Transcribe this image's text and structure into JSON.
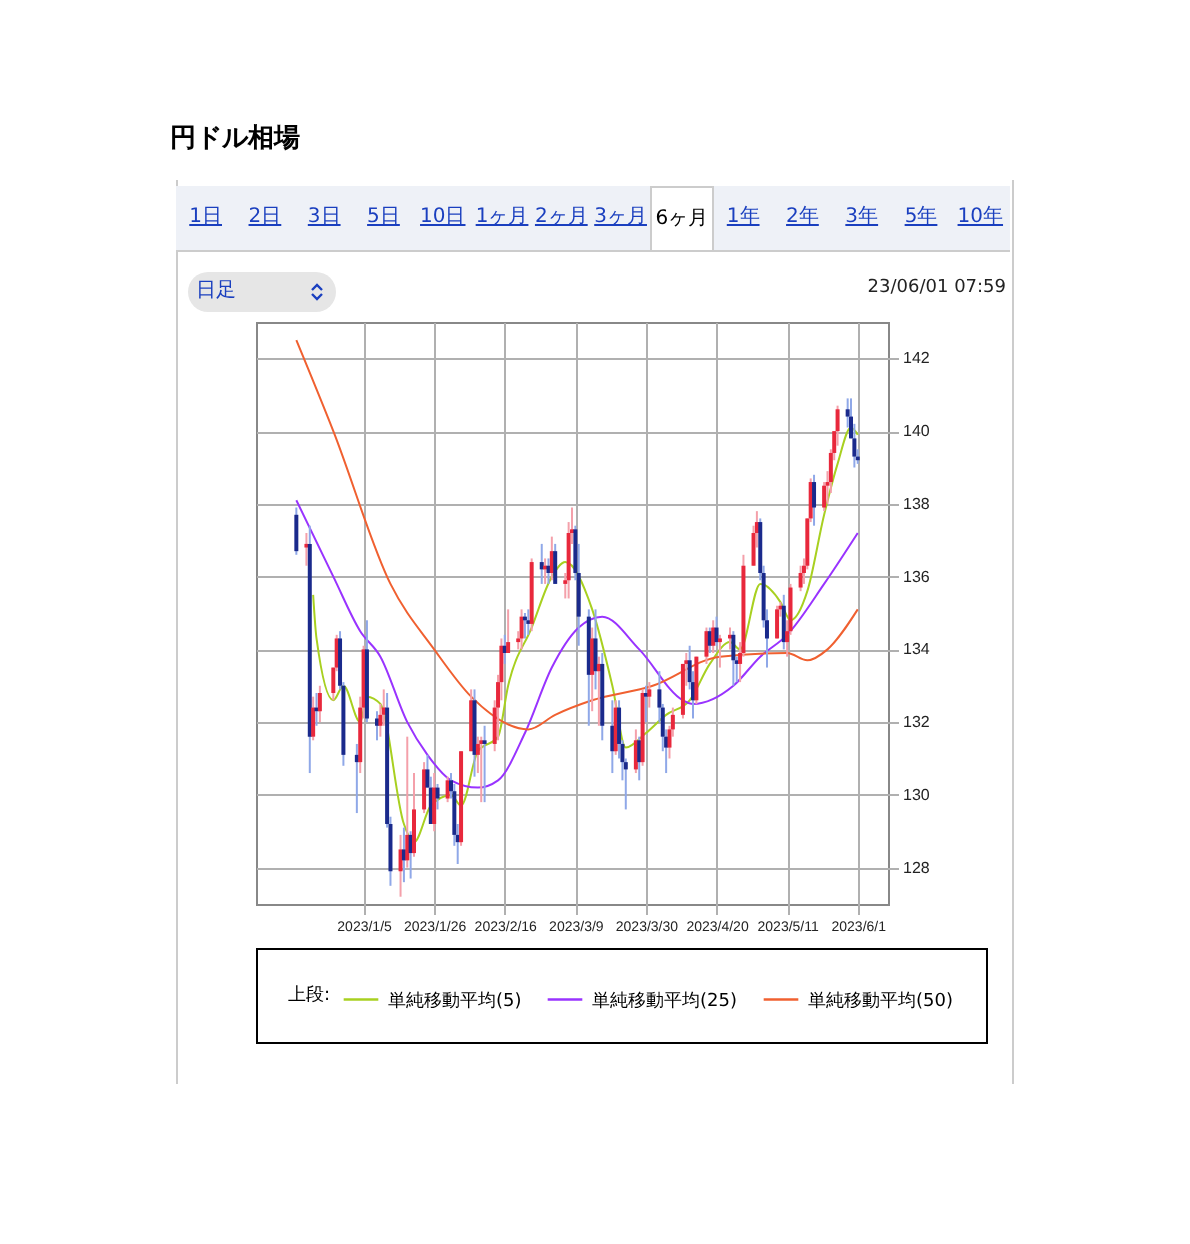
{
  "chart_data": {
    "type": "candlestick",
    "title": "円ドル相場",
    "annotations": [
      "1日",
      "2日",
      "3日",
      "5日",
      "10日",
      "1ヶ月",
      "2ヶ月",
      "3ヶ月",
      "6ヶ月",
      "1年",
      "2年",
      "3年",
      "5年",
      "10年",
      "日足",
      "23/06/01 07:59"
    ],
    "legend_title": "上段:",
    "legend": "bottom",
    "grid": true,
    "xlim": [
      "2022-12-04",
      "2023-06-10"
    ],
    "ylim": [
      127,
      143
    ],
    "xticks": [
      {
        "value": "2023-01-05",
        "label": "2023/1/5"
      },
      {
        "value": "2023-01-26",
        "label": "2023/1/26"
      },
      {
        "value": "2023-02-16",
        "label": "2023/2/16"
      },
      {
        "value": "2023-03-09",
        "label": "2023/3/9"
      },
      {
        "value": "2023-03-30",
        "label": "2023/3/30"
      },
      {
        "value": "2023-04-20",
        "label": "2023/4/20"
      },
      {
        "value": "2023-05-11",
        "label": "2023/5/11"
      },
      {
        "value": "2023-06-01",
        "label": "2023/6/1"
      }
    ],
    "yticks": [
      128,
      130,
      132,
      134,
      136,
      138,
      140,
      142
    ],
    "x": [
      "2022-12-16",
      "2022-12-19",
      "2022-12-20",
      "2022-12-21",
      "2022-12-22",
      "2022-12-23",
      "2022-12-27",
      "2022-12-28",
      "2022-12-29",
      "2022-12-30",
      "2023-01-03",
      "2023-01-04",
      "2023-01-05",
      "2023-01-06",
      "2023-01-09",
      "2023-01-10",
      "2023-01-11",
      "2023-01-12",
      "2023-01-13",
      "2023-01-16",
      "2023-01-17",
      "2023-01-18",
      "2023-01-19",
      "2023-01-20",
      "2023-01-23",
      "2023-01-24",
      "2023-01-25",
      "2023-01-26",
      "2023-01-27",
      "2023-01-30",
      "2023-01-31",
      "2023-02-01",
      "2023-02-02",
      "2023-02-03",
      "2023-02-06",
      "2023-02-07",
      "2023-02-08",
      "2023-02-09",
      "2023-02-10",
      "2023-02-13",
      "2023-02-14",
      "2023-02-15",
      "2023-02-16",
      "2023-02-17",
      "2023-02-20",
      "2023-02-21",
      "2023-02-22",
      "2023-02-23",
      "2023-02-24",
      "2023-02-27",
      "2023-02-28",
      "2023-03-01",
      "2023-03-02",
      "2023-03-03",
      "2023-03-06",
      "2023-03-07",
      "2023-03-08",
      "2023-03-09",
      "2023-03-10",
      "2023-03-13",
      "2023-03-14",
      "2023-03-15",
      "2023-03-16",
      "2023-03-17",
      "2023-03-20",
      "2023-03-21",
      "2023-03-22",
      "2023-03-23",
      "2023-03-24",
      "2023-03-27",
      "2023-03-28",
      "2023-03-29",
      "2023-03-30",
      "2023-03-31",
      "2023-04-03",
      "2023-04-04",
      "2023-04-05",
      "2023-04-06",
      "2023-04-07",
      "2023-04-10",
      "2023-04-11",
      "2023-04-12",
      "2023-04-13",
      "2023-04-14",
      "2023-04-17",
      "2023-04-18",
      "2023-04-19",
      "2023-04-20",
      "2023-04-21",
      "2023-04-24",
      "2023-04-25",
      "2023-04-26",
      "2023-04-27",
      "2023-04-28",
      "2023-05-01",
      "2023-05-02",
      "2023-05-03",
      "2023-05-04",
      "2023-05-05",
      "2023-05-08",
      "2023-05-09",
      "2023-05-10",
      "2023-05-11",
      "2023-05-12",
      "2023-05-15",
      "2023-05-16",
      "2023-05-17",
      "2023-05-18",
      "2023-05-19",
      "2023-05-22",
      "2023-05-23",
      "2023-05-24",
      "2023-05-25",
      "2023-05-26",
      "2023-05-29",
      "2023-05-30",
      "2023-05-31",
      "2023-06-01"
    ],
    "ohlc": [
      [
        137.7,
        137.9,
        136.6,
        136.7
      ],
      [
        136.8,
        137.2,
        136.3,
        136.9
      ],
      [
        136.9,
        137.4,
        130.6,
        131.6
      ],
      [
        131.6,
        132.7,
        131.5,
        132.4
      ],
      [
        132.4,
        132.8,
        131.9,
        132.3
      ],
      [
        132.3,
        133.0,
        132.0,
        132.8
      ],
      [
        132.8,
        133.5,
        132.6,
        133.5
      ],
      [
        133.5,
        134.4,
        133.4,
        134.3
      ],
      [
        134.3,
        134.5,
        132.9,
        133.0
      ],
      [
        133.0,
        133.1,
        130.8,
        131.1
      ],
      [
        131.1,
        131.4,
        129.5,
        130.9
      ],
      [
        130.9,
        132.7,
        130.6,
        132.4
      ],
      [
        132.4,
        134.1,
        132.1,
        134.0
      ],
      [
        134.0,
        134.8,
        132.0,
        132.1
      ],
      [
        132.1,
        132.3,
        131.5,
        131.9
      ],
      [
        131.9,
        132.5,
        131.6,
        132.2
      ],
      [
        132.2,
        132.9,
        131.9,
        132.4
      ],
      [
        132.4,
        132.8,
        129.1,
        129.2
      ],
      [
        129.2,
        129.4,
        127.5,
        127.9
      ],
      [
        127.9,
        128.9,
        127.2,
        128.5
      ],
      [
        128.5,
        129.1,
        127.6,
        128.2
      ],
      [
        128.2,
        131.6,
        128.0,
        128.9
      ],
      [
        128.9,
        129.0,
        127.7,
        128.4
      ],
      [
        128.4,
        130.6,
        128.3,
        129.6
      ],
      [
        129.6,
        130.9,
        129.5,
        130.7
      ],
      [
        130.7,
        131.1,
        130.2,
        130.2
      ],
      [
        130.2,
        130.5,
        129.2,
        129.2
      ],
      [
        129.2,
        130.6,
        129.0,
        130.2
      ],
      [
        130.2,
        130.3,
        129.6,
        129.9
      ],
      [
        129.9,
        130.5,
        129.8,
        130.4
      ],
      [
        130.4,
        130.6,
        129.9,
        130.1
      ],
      [
        130.1,
        130.3,
        128.6,
        128.9
      ],
      [
        128.9,
        129.2,
        128.1,
        128.7
      ],
      [
        128.7,
        131.2,
        128.6,
        131.2
      ],
      [
        131.2,
        132.9,
        131.2,
        132.6
      ],
      [
        132.6,
        132.9,
        130.5,
        131.1
      ],
      [
        131.1,
        131.6,
        130.6,
        131.4
      ],
      [
        131.4,
        131.6,
        129.8,
        131.5
      ],
      [
        131.5,
        131.9,
        129.8,
        131.4
      ],
      [
        131.4,
        132.6,
        131.2,
        132.4
      ],
      [
        132.4,
        133.3,
        131.5,
        133.1
      ],
      [
        133.1,
        134.3,
        132.6,
        134.1
      ],
      [
        134.1,
        134.4,
        133.6,
        133.9
      ],
      [
        133.9,
        135.1,
        133.9,
        134.2
      ],
      [
        134.2,
        134.5,
        134.0,
        134.3
      ],
      [
        134.3,
        135.1,
        134.0,
        134.9
      ],
      [
        134.9,
        135.0,
        134.3,
        134.8
      ],
      [
        134.8,
        135.1,
        134.4,
        134.7
      ],
      [
        134.7,
        136.5,
        134.5,
        136.4
      ],
      [
        136.4,
        136.9,
        135.8,
        136.2
      ],
      [
        136.2,
        136.5,
        135.8,
        136.3
      ],
      [
        136.3,
        136.5,
        135.8,
        136.1
      ],
      [
        136.1,
        137.1,
        135.9,
        136.7
      ],
      [
        136.7,
        136.9,
        135.8,
        135.8
      ],
      [
        135.8,
        136.1,
        135.4,
        135.9
      ],
      [
        135.9,
        137.5,
        135.4,
        137.2
      ],
      [
        137.2,
        137.9,
        136.9,
        137.3
      ],
      [
        137.3,
        137.4,
        135.9,
        136.1
      ],
      [
        136.1,
        136.9,
        134.1,
        134.9
      ],
      [
        134.9,
        135.1,
        131.9,
        133.3
      ],
      [
        133.3,
        134.6,
        132.3,
        134.3
      ],
      [
        134.3,
        135.1,
        132.9,
        133.4
      ],
      [
        133.4,
        133.8,
        131.9,
        133.6
      ],
      [
        133.6,
        133.9,
        131.5,
        131.9
      ],
      [
        131.9,
        132.6,
        130.6,
        131.2
      ],
      [
        131.2,
        132.6,
        131.1,
        132.4
      ],
      [
        132.4,
        132.6,
        131.0,
        131.4
      ],
      [
        131.4,
        131.5,
        130.4,
        130.9
      ],
      [
        130.9,
        131.0,
        129.6,
        130.7
      ],
      [
        130.7,
        131.8,
        130.6,
        131.5
      ],
      [
        131.5,
        131.6,
        130.4,
        130.9
      ],
      [
        130.9,
        132.9,
        130.8,
        132.8
      ],
      [
        132.8,
        133.0,
        132.0,
        132.7
      ],
      [
        132.7,
        133.1,
        132.4,
        132.9
      ],
      [
        132.9,
        133.4,
        132.0,
        132.4
      ],
      [
        132.4,
        132.5,
        131.2,
        131.6
      ],
      [
        131.6,
        131.8,
        130.6,
        131.3
      ],
      [
        131.3,
        131.9,
        131.0,
        131.8
      ],
      [
        131.8,
        132.4,
        131.6,
        132.2
      ],
      [
        132.2,
        133.6,
        132.1,
        133.6
      ],
      [
        133.6,
        133.9,
        133.0,
        133.7
      ],
      [
        133.7,
        134.1,
        132.9,
        133.1
      ],
      [
        133.1,
        133.4,
        132.1,
        132.6
      ],
      [
        132.6,
        133.8,
        132.5,
        133.8
      ],
      [
        133.8,
        134.6,
        133.6,
        134.5
      ],
      [
        134.5,
        134.6,
        133.9,
        134.1
      ],
      [
        134.1,
        134.8,
        133.9,
        134.6
      ],
      [
        134.6,
        134.9,
        134.1,
        134.2
      ],
      [
        134.2,
        134.4,
        133.5,
        134.3
      ],
      [
        134.3,
        134.6,
        134.0,
        134.4
      ],
      [
        134.4,
        134.5,
        133.0,
        133.7
      ],
      [
        133.7,
        133.8,
        133.1,
        133.6
      ],
      [
        133.6,
        134.2,
        133.1,
        133.9
      ],
      [
        133.9,
        136.6,
        133.8,
        136.3
      ],
      [
        136.3,
        137.4,
        136.3,
        137.2
      ],
      [
        137.2,
        137.8,
        136.8,
        137.5
      ],
      [
        137.5,
        137.6,
        135.9,
        136.1
      ],
      [
        136.1,
        136.3,
        134.6,
        134.8
      ],
      [
        134.8,
        135.1,
        133.5,
        134.3
      ],
      [
        134.3,
        135.2,
        134.3,
        135.1
      ],
      [
        135.1,
        135.3,
        134.9,
        135.2
      ],
      [
        135.2,
        135.5,
        134.0,
        134.2
      ],
      [
        134.2,
        134.8,
        133.8,
        134.5
      ],
      [
        134.5,
        135.8,
        134.4,
        135.7
      ],
      [
        135.7,
        136.3,
        135.6,
        136.1
      ],
      [
        136.1,
        136.5,
        135.8,
        136.3
      ],
      [
        136.3,
        137.6,
        136.2,
        137.6
      ],
      [
        137.6,
        138.7,
        137.5,
        138.6
      ],
      [
        138.6,
        138.8,
        137.4,
        137.9
      ],
      [
        137.9,
        138.6,
        137.8,
        138.5
      ],
      [
        138.5,
        138.9,
        138.0,
        138.6
      ],
      [
        138.6,
        139.5,
        138.3,
        139.4
      ],
      [
        139.4,
        140.0,
        139.2,
        140.0
      ],
      [
        140.0,
        140.7,
        139.6,
        140.6
      ],
      [
        140.6,
        140.9,
        140.1,
        140.4
      ],
      [
        140.4,
        140.9,
        139.8,
        139.8
      ],
      [
        139.8,
        140.2,
        139.0,
        139.3
      ],
      [
        139.3,
        139.5,
        139.1,
        139.2
      ]
    ],
    "series": [
      {
        "type": "line",
        "name": "単純移動平均(5)",
        "color": "#a8d020",
        "x": [
          "2022-12-21",
          "2022-12-22",
          "2022-12-27",
          "2022-12-30",
          "2023-01-04",
          "2023-01-06",
          "2023-01-10",
          "2023-01-17",
          "2023-01-20",
          "2023-01-25",
          "2023-01-31",
          "2023-02-03",
          "2023-02-08",
          "2023-02-14",
          "2023-02-17",
          "2023-02-24",
          "2023-03-02",
          "2023-03-06",
          "2023-03-14",
          "2023-03-20",
          "2023-03-24",
          "2023-03-30",
          "2023-04-05",
          "2023-04-12",
          "2023-04-18",
          "2023-04-24",
          "2023-04-27",
          "2023-05-03",
          "2023-05-09",
          "2023-05-12",
          "2023-05-17",
          "2023-05-22",
          "2023-05-26",
          "2023-05-30",
          "2023-06-01"
        ],
        "values": [
          135.5,
          134.3,
          132.6,
          133.0,
          132.0,
          132.7,
          132.5,
          129.2,
          128.7,
          129.7,
          130.0,
          129.7,
          131.2,
          131.6,
          133.0,
          134.6,
          136.0,
          136.4,
          135.1,
          133.0,
          131.3,
          131.7,
          132.2,
          132.6,
          133.6,
          134.2,
          134.0,
          135.8,
          135.3,
          134.8,
          135.6,
          137.7,
          139.1,
          140.1,
          139.9
        ]
      },
      {
        "type": "line",
        "name": "単純移動平均(25)",
        "color": "#9933ff",
        "x": [
          "2022-12-16",
          "2022-12-27",
          "2023-01-04",
          "2023-01-10",
          "2023-01-18",
          "2023-01-24",
          "2023-01-31",
          "2023-02-08",
          "2023-02-14",
          "2023-02-22",
          "2023-03-02",
          "2023-03-10",
          "2023-03-17",
          "2023-03-28",
          "2023-04-10",
          "2023-04-13",
          "2023-04-25",
          "2023-05-03",
          "2023-05-11",
          "2023-05-22",
          "2023-06-01"
        ],
        "values": [
          138.1,
          136.0,
          134.5,
          133.8,
          132.0,
          131.1,
          130.4,
          130.2,
          130.4,
          131.7,
          133.5,
          134.6,
          134.9,
          134.0,
          132.6,
          132.5,
          133.0,
          133.8,
          134.4,
          135.8,
          137.2
        ]
      },
      {
        "type": "line",
        "name": "単純移動平均(50)",
        "color": "#f06030",
        "x": [
          "2022-12-16",
          "2022-12-27",
          "2023-01-13",
          "2023-01-26",
          "2023-02-06",
          "2023-02-23",
          "2023-03-03",
          "2023-03-14",
          "2023-04-01",
          "2023-04-21",
          "2023-05-11",
          "2023-05-17",
          "2023-05-23",
          "2023-06-01"
        ],
        "values": [
          142.5,
          140.0,
          135.8,
          134.0,
          132.7,
          131.8,
          132.2,
          132.6,
          133.0,
          133.8,
          133.9,
          133.7,
          134.0,
          135.1
        ]
      }
    ]
  }
}
